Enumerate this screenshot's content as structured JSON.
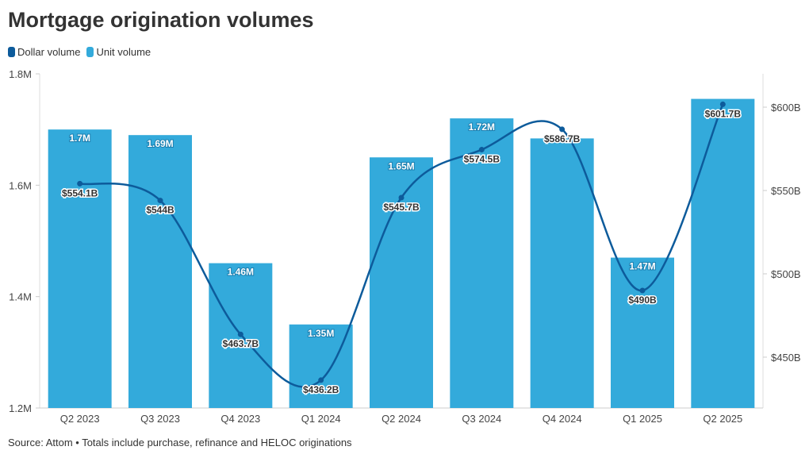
{
  "title": "Mortgage origination volumes",
  "source": "Source: Attom • Totals include purchase, refinance and HELOC originations",
  "chart_data": {
    "type": "bar",
    "title": "Mortgage origination volumes",
    "categories": [
      "Q2 2023",
      "Q3 2023",
      "Q4 2023",
      "Q1 2024",
      "Q2 2024",
      "Q3 2024",
      "Q4 2024",
      "Q1 2025",
      "Q2 2025"
    ],
    "legend_position": "top-left",
    "series": [
      {
        "name": "Dollar volume",
        "type": "line",
        "axis": "right",
        "color": "#0d5b9b",
        "values": [
          554.1,
          544,
          463.7,
          436.2,
          545.7,
          574.5,
          586.7,
          490,
          601.7
        ],
        "labels": [
          "$554.1B",
          "$544B",
          "$463.7B",
          "$436.2B",
          "$545.7B",
          "$574.5B",
          "$586.7B",
          "$490B",
          "$601.7B"
        ]
      },
      {
        "name": "Unit volume",
        "type": "bar",
        "axis": "left",
        "color": "#33aadb",
        "values": [
          1.7,
          1.69,
          1.46,
          1.35,
          1.65,
          1.72,
          1.684,
          1.47,
          1.755
        ],
        "labels": [
          "1.7M",
          "1.69M",
          "1.46M",
          "1.35M",
          "1.65M",
          "1.72M",
          null,
          "1.47M",
          null
        ]
      }
    ],
    "left_axis": {
      "range": [
        1.2,
        1.8
      ],
      "ticks": [
        1.2,
        1.4,
        1.6,
        1.8
      ],
      "tick_labels": [
        "1.2M",
        "1.4M",
        "1.6M",
        "1.8M"
      ]
    },
    "right_axis": {
      "range": [
        419.5,
        620
      ],
      "ticks": [
        450,
        500,
        550,
        600
      ],
      "tick_labels": [
        "$450B",
        "$500B",
        "$550B",
        "$600B"
      ]
    },
    "grid": false
  }
}
